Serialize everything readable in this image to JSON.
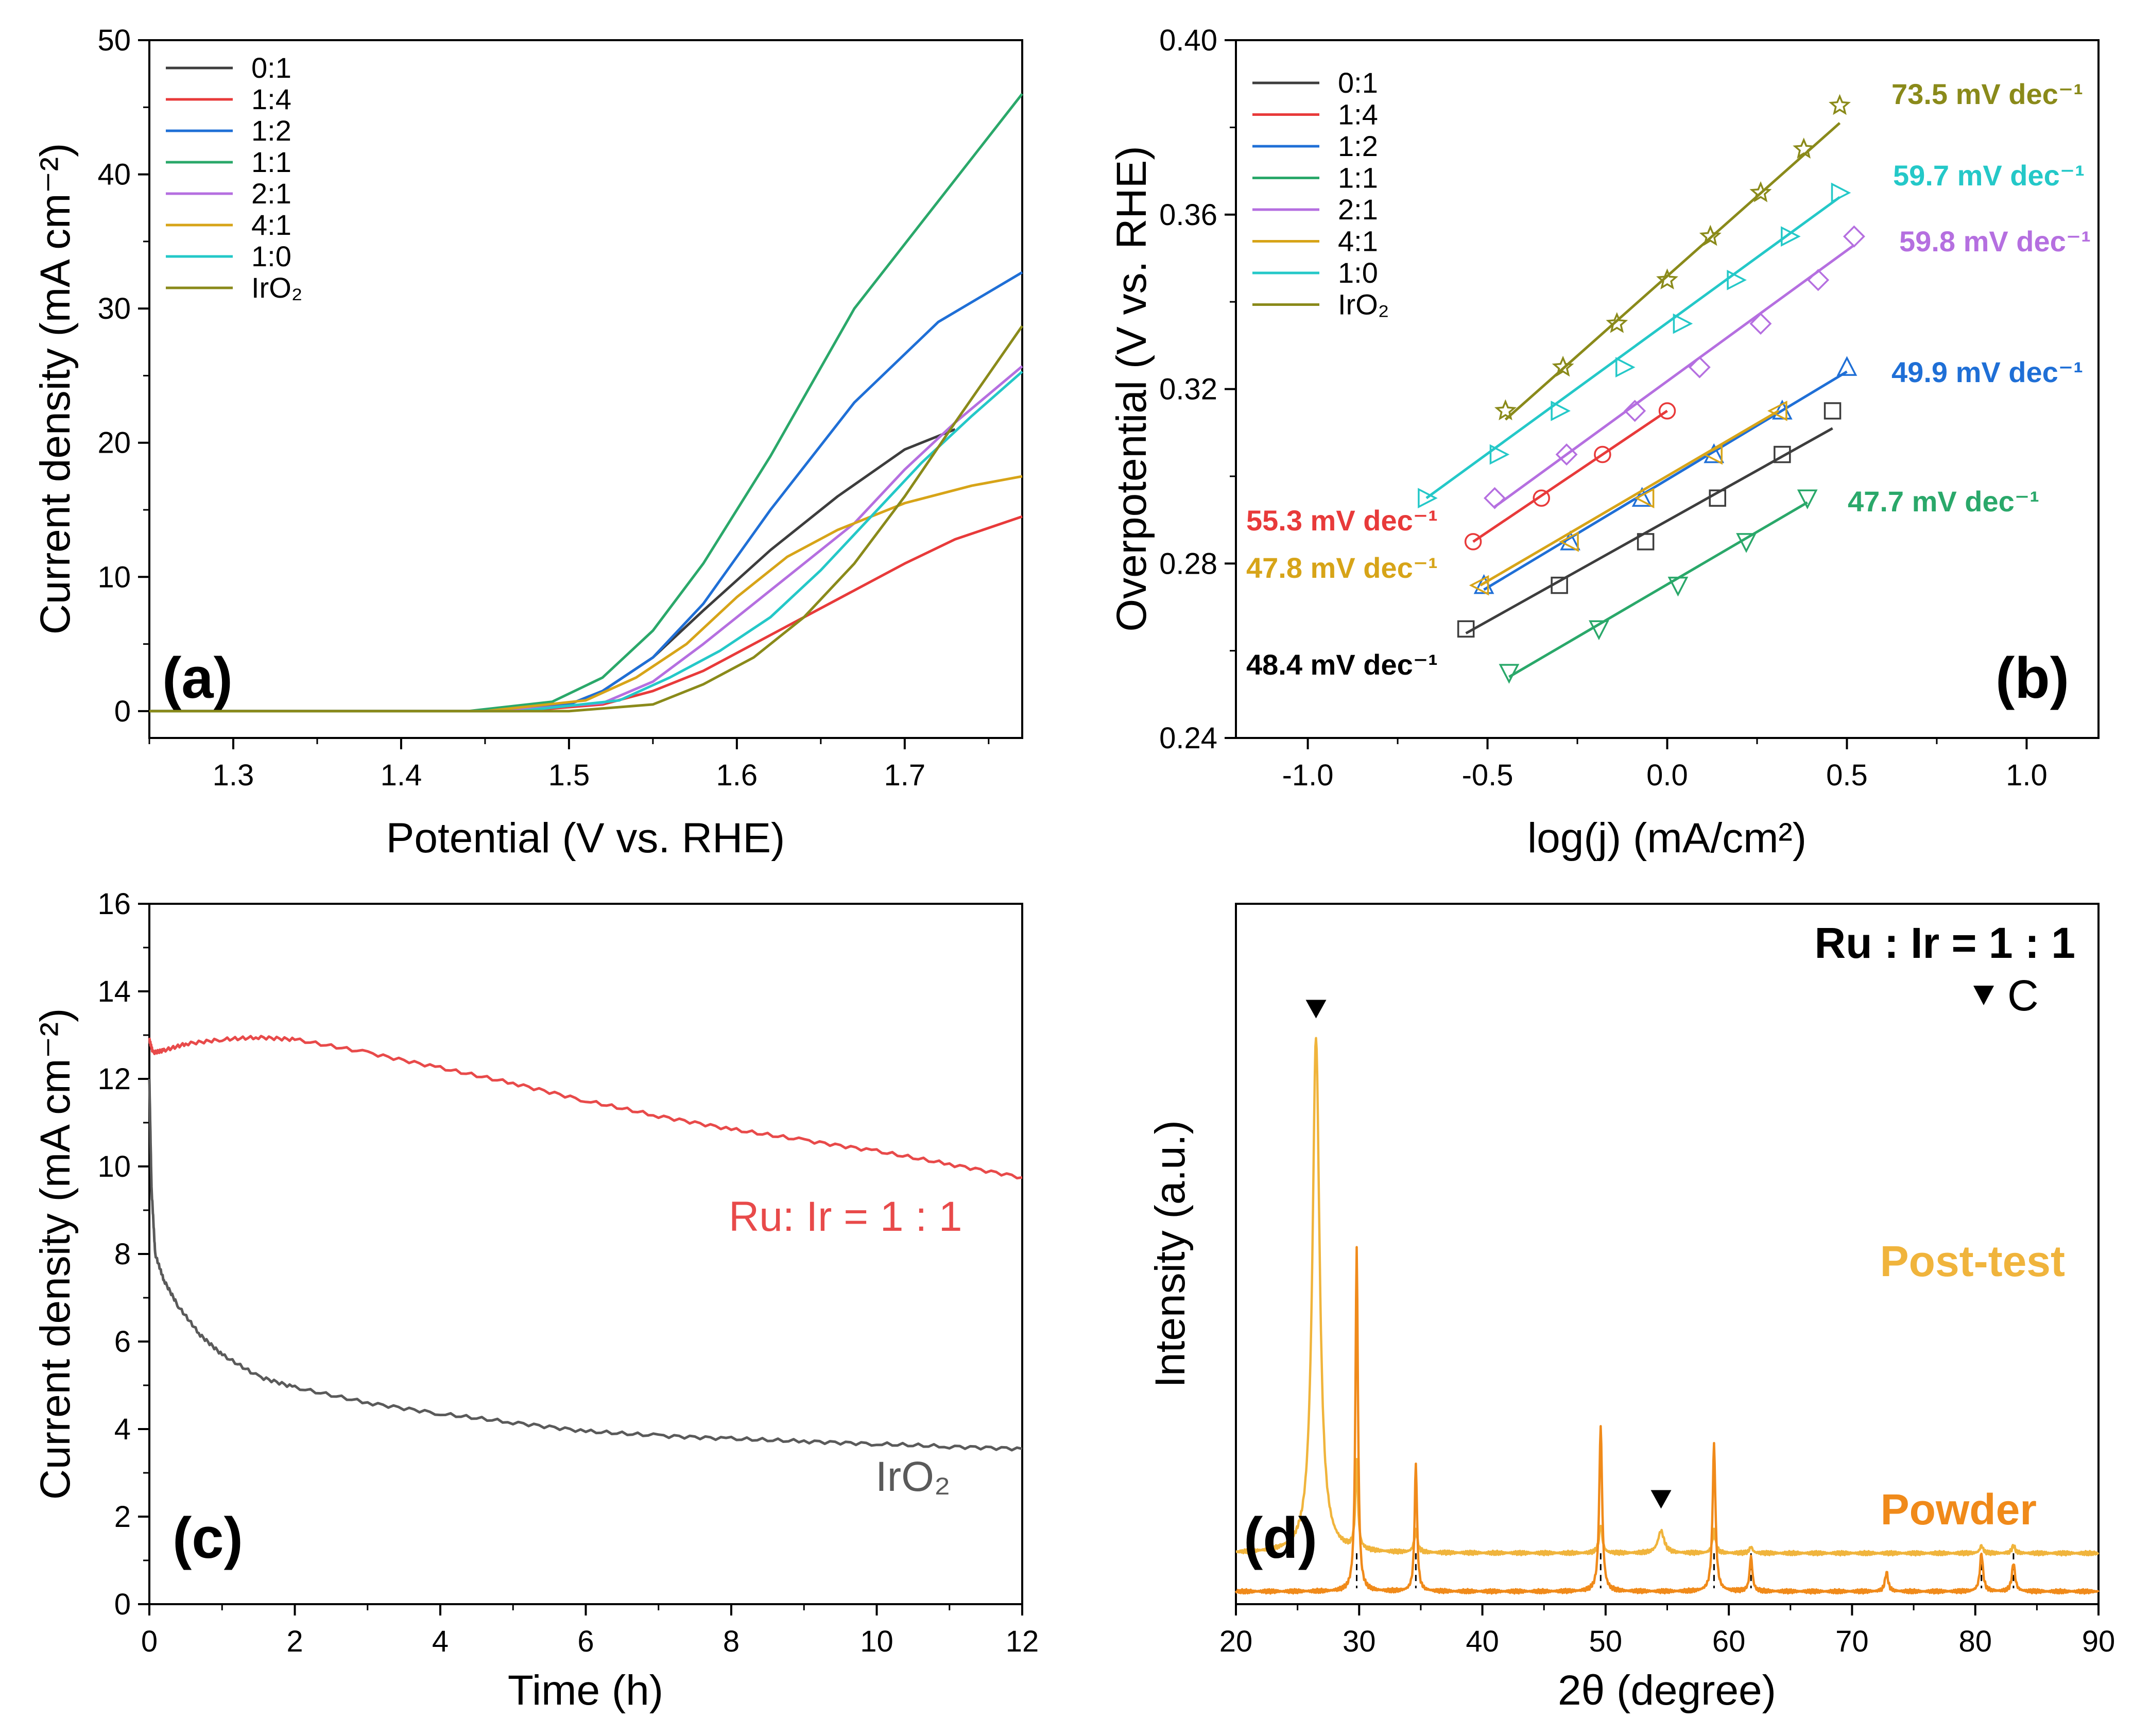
{
  "chart_data": [
    {
      "panel": "(a)",
      "type": "line",
      "xlabel": "Potential (V vs. RHE)",
      "ylabel": "Current density (mA cm⁻²)",
      "xlim": [
        1.25,
        1.77
      ],
      "ylim": [
        -2,
        50
      ],
      "xticks": [
        "1.3",
        "1.4",
        "1.5",
        "1.6",
        "1.7"
      ],
      "yticks": [
        "0",
        "10",
        "20",
        "30",
        "40",
        "50"
      ],
      "legend": "top-left",
      "series": [
        {
          "name": "0:1",
          "color": "#3d3d3d",
          "x": [
            1.25,
            1.45,
            1.5,
            1.52,
            1.55,
            1.58,
            1.62,
            1.66,
            1.7,
            1.73
          ],
          "y": [
            0,
            0,
            0.5,
            1.5,
            4,
            7.5,
            12,
            16,
            19.5,
            21
          ]
        },
        {
          "name": "1:4",
          "color": "#e83a3a",
          "x": [
            1.25,
            1.47,
            1.52,
            1.55,
            1.58,
            1.61,
            1.64,
            1.67,
            1.7,
            1.73,
            1.77
          ],
          "y": [
            0,
            0,
            0.5,
            1.5,
            3,
            5,
            7,
            9,
            11,
            12.8,
            14.5
          ]
        },
        {
          "name": "1:2",
          "color": "#1f6fd6",
          "x": [
            1.25,
            1.45,
            1.5,
            1.52,
            1.55,
            1.58,
            1.62,
            1.67,
            1.72,
            1.77
          ],
          "y": [
            0,
            0,
            0.5,
            1.5,
            4,
            8,
            15,
            23,
            29,
            32.7
          ]
        },
        {
          "name": "1:1",
          "color": "#2aa86a",
          "x": [
            1.25,
            1.44,
            1.49,
            1.52,
            1.55,
            1.58,
            1.62,
            1.67,
            1.72,
            1.77
          ],
          "y": [
            0,
            0,
            0.7,
            2.5,
            6,
            11,
            19,
            30,
            38,
            46
          ]
        },
        {
          "name": "2:1",
          "color": "#b56fe0",
          "x": [
            1.25,
            1.46,
            1.52,
            1.55,
            1.58,
            1.61,
            1.64,
            1.67,
            1.7,
            1.73,
            1.77
          ],
          "y": [
            0,
            0,
            0.6,
            2.2,
            5,
            8,
            11,
            14,
            18,
            21.5,
            25.7
          ]
        },
        {
          "name": "4:1",
          "color": "#d7a418",
          "x": [
            1.25,
            1.45,
            1.51,
            1.54,
            1.57,
            1.6,
            1.63,
            1.66,
            1.7,
            1.74,
            1.77
          ],
          "y": [
            0,
            0,
            0.8,
            2.5,
            5,
            8.5,
            11.5,
            13.5,
            15.5,
            16.8,
            17.5
          ]
        },
        {
          "name": "1:0",
          "color": "#24c8c8",
          "x": [
            1.25,
            1.47,
            1.53,
            1.56,
            1.59,
            1.62,
            1.65,
            1.68,
            1.71,
            1.74,
            1.77
          ],
          "y": [
            0,
            0,
            0.8,
            2.5,
            4.5,
            7,
            10.5,
            14.5,
            18.5,
            22,
            25.3
          ]
        },
        {
          "name": "IrO₂",
          "color": "#8a8a1a",
          "x": [
            1.25,
            1.5,
            1.55,
            1.58,
            1.61,
            1.64,
            1.67,
            1.7,
            1.73,
            1.77
          ],
          "y": [
            0,
            0,
            0.5,
            2,
            4,
            7,
            11,
            16,
            21.5,
            28.7
          ]
        }
      ]
    },
    {
      "panel": "(b)",
      "type": "scatter",
      "xlabel": "log(j) (mA/cm²)",
      "ylabel": "Overpotential (V vs. RHE)",
      "xlim": [
        -1.2,
        1.2
      ],
      "ylim": [
        0.24,
        0.4
      ],
      "xticks": [
        "-1.0",
        "-0.5",
        "0.0",
        "0.5",
        "1.0"
      ],
      "yticks": [
        "0.24",
        "0.28",
        "0.32",
        "0.36",
        "0.40"
      ],
      "legend": "top-left",
      "series": [
        {
          "name": "0:1",
          "color": "#3d3d3d",
          "marker": "square",
          "slope_label": "48.4 mV dec⁻¹",
          "x": [
            -0.56,
            -0.3,
            -0.06,
            0.14,
            0.32,
            0.46
          ],
          "y": [
            0.265,
            0.275,
            0.285,
            0.295,
            0.305,
            0.315
          ],
          "fit": [
            [
              -0.56,
              0.264
            ],
            [
              0.46,
              0.311
            ]
          ]
        },
        {
          "name": "1:4",
          "color": "#e83a3a",
          "marker": "circle",
          "slope_label": "55.3 mV dec⁻¹",
          "x": [
            -0.54,
            -0.35,
            -0.18,
            0.0
          ],
          "y": [
            0.285,
            0.295,
            0.305,
            0.315
          ],
          "fit": [
            [
              -0.54,
              0.285
            ],
            [
              0.0,
              0.315
            ]
          ]
        },
        {
          "name": "1:2",
          "color": "#1f6fd6",
          "marker": "triangle-up",
          "slope_label": "49.9 mV dec⁻¹",
          "x": [
            -0.51,
            -0.27,
            -0.07,
            0.13,
            0.32,
            0.5
          ],
          "y": [
            0.275,
            0.285,
            0.295,
            0.305,
            0.315,
            0.325
          ],
          "fit": [
            [
              -0.51,
              0.274
            ],
            [
              0.5,
              0.324
            ]
          ]
        },
        {
          "name": "1:1",
          "color": "#2aa86a",
          "marker": "triangle-down",
          "slope_label": "47.7 mV dec⁻¹",
          "x": [
            -0.44,
            -0.19,
            0.03,
            0.22,
            0.39
          ],
          "y": [
            0.255,
            0.265,
            0.275,
            0.285,
            0.295
          ],
          "fit": [
            [
              -0.44,
              0.254
            ],
            [
              0.39,
              0.294
            ]
          ]
        },
        {
          "name": "2:1",
          "color": "#b56fe0",
          "marker": "diamond",
          "slope_label": "59.8 mV dec⁻¹",
          "x": [
            -0.48,
            -0.28,
            -0.09,
            0.09,
            0.26,
            0.42,
            0.52
          ],
          "y": [
            0.295,
            0.305,
            0.315,
            0.325,
            0.335,
            0.345,
            0.355
          ],
          "fit": [
            [
              -0.48,
              0.293
            ],
            [
              0.52,
              0.353
            ]
          ]
        },
        {
          "name": "4:1",
          "color": "#d7a418",
          "marker": "triangle-left",
          "slope_label": "47.8 mV dec⁻¹",
          "x": [
            -0.52,
            -0.27,
            -0.06,
            0.13,
            0.31
          ],
          "y": [
            0.275,
            0.285,
            0.295,
            0.305,
            0.315
          ],
          "fit": [
            [
              -0.52,
              0.275
            ],
            [
              0.31,
              0.315
            ]
          ]
        },
        {
          "name": "1:0",
          "color": "#24c8c8",
          "marker": "triangle-right",
          "slope_label": "59.7 mV dec⁻¹",
          "x": [
            -0.67,
            -0.47,
            -0.3,
            -0.12,
            0.04,
            0.19,
            0.34,
            0.48
          ],
          "y": [
            0.295,
            0.305,
            0.315,
            0.325,
            0.335,
            0.345,
            0.355,
            0.365
          ],
          "fit": [
            [
              -0.67,
              0.295
            ],
            [
              0.48,
              0.364
            ]
          ]
        },
        {
          "name": "IrO₂",
          "color": "#8a8a1a",
          "marker": "star",
          "slope_label": "73.5 mV dec⁻¹",
          "x": [
            -0.45,
            -0.29,
            -0.14,
            0.0,
            0.12,
            0.26,
            0.38,
            0.48
          ],
          "y": [
            0.315,
            0.325,
            0.335,
            0.345,
            0.355,
            0.365,
            0.375,
            0.385
          ],
          "fit": [
            [
              -0.45,
              0.313
            ],
            [
              0.48,
              0.381
            ]
          ]
        }
      ]
    },
    {
      "panel": "(c)",
      "type": "line",
      "xlabel": "Time (h)",
      "ylabel": "Current density (mA cm⁻²)",
      "xlim": [
        0,
        12
      ],
      "ylim": [
        0,
        16
      ],
      "xticks": [
        "0",
        "2",
        "4",
        "6",
        "8",
        "10",
        "12"
      ],
      "yticks": [
        "0",
        "2",
        "4",
        "6",
        "8",
        "10",
        "12",
        "14",
        "16"
      ],
      "series": [
        {
          "name": "Ru: Ir = 1 : 1",
          "color": "#e84a4a",
          "x": [
            0,
            0.05,
            0.2,
            0.5,
            1,
            1.5,
            2,
            3,
            4,
            5,
            6,
            7,
            8,
            9,
            10,
            11,
            12
          ],
          "y": [
            12.9,
            12.6,
            12.65,
            12.8,
            12.9,
            12.95,
            12.9,
            12.6,
            12.25,
            11.9,
            11.5,
            11.15,
            10.85,
            10.6,
            10.35,
            10.05,
            9.75
          ]
        },
        {
          "name": "IrO₂",
          "color": "#5a5a5a",
          "x": [
            0,
            0.03,
            0.08,
            0.2,
            0.4,
            0.7,
            1,
            1.5,
            2,
            3,
            4,
            5,
            6,
            7,
            8,
            9,
            10,
            11,
            12
          ],
          "y": [
            12,
            9.5,
            8,
            7.4,
            6.8,
            6.15,
            5.7,
            5.2,
            4.95,
            4.6,
            4.35,
            4.15,
            3.95,
            3.85,
            3.78,
            3.72,
            3.66,
            3.6,
            3.55
          ]
        }
      ]
    },
    {
      "panel": "(d)",
      "type": "line",
      "xlabel": "2θ (degree)",
      "ylabel": "Intensity (a.u.)",
      "xlim": [
        20,
        90
      ],
      "xticks": [
        "20",
        "30",
        "40",
        "50",
        "60",
        "70",
        "80",
        "90"
      ],
      "annotation_title": "Ru : Ir = 1 : 1",
      "marker_legend": "C",
      "reference_lines": [
        29.8,
        34.6,
        49.6,
        58.8,
        61.8,
        80.5,
        83.1
      ],
      "carbon_peaks": [
        26.5,
        54.5
      ],
      "series": [
        {
          "name": "Post-test",
          "color": "#f0b43c",
          "baseline": 0.6,
          "peaks": [
            [
              26.5,
              8.1,
              0.35
            ],
            [
              29.8,
              1.4,
              0.12
            ],
            [
              34.6,
              0.35,
              0.15
            ],
            [
              49.6,
              0.45,
              0.15
            ],
            [
              54.5,
              0.35,
              0.3
            ],
            [
              58.8,
              0.35,
              0.15
            ],
            [
              61.8,
              0.1,
              0.15
            ],
            [
              80.5,
              0.12,
              0.15
            ],
            [
              83.1,
              0.12,
              0.15
            ]
          ]
        },
        {
          "name": "Powder",
          "color": "#f08a1a",
          "baseline": 0.0,
          "peaks": [
            [
              29.8,
              5.4,
              0.12
            ],
            [
              34.6,
              2.0,
              0.12
            ],
            [
              49.6,
              2.6,
              0.14
            ],
            [
              58.8,
              2.3,
              0.14
            ],
            [
              61.8,
              0.55,
              0.13
            ],
            [
              72.8,
              0.3,
              0.15
            ],
            [
              80.5,
              0.6,
              0.15
            ],
            [
              83.1,
              0.45,
              0.15
            ]
          ]
        }
      ]
    }
  ]
}
